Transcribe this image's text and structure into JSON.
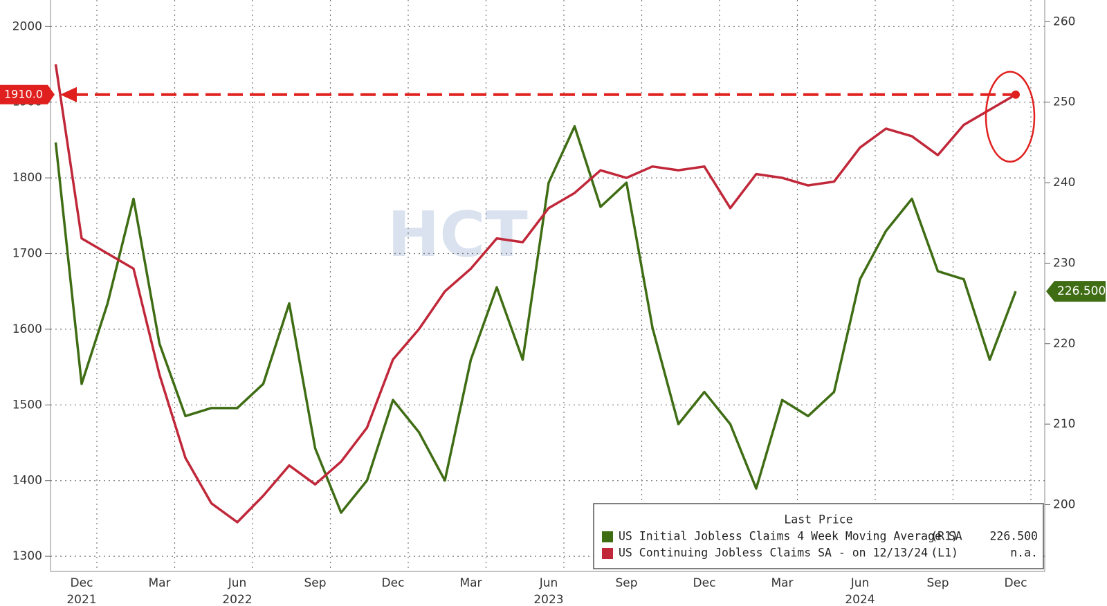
{
  "chart_data": {
    "type": "line",
    "watermark": "HCT",
    "x": [
      "2021-11",
      "2021-12",
      "2022-01",
      "2022-02",
      "2022-03",
      "2022-04",
      "2022-05",
      "2022-06",
      "2022-07",
      "2022-08",
      "2022-09",
      "2022-10",
      "2022-11",
      "2022-12",
      "2023-01",
      "2023-02",
      "2023-03",
      "2023-04",
      "2023-05",
      "2023-06",
      "2023-07",
      "2023-08",
      "2023-09",
      "2023-10",
      "2023-11",
      "2023-12",
      "2024-01",
      "2024-02",
      "2024-03",
      "2024-04",
      "2024-05",
      "2024-06",
      "2024-07",
      "2024-08",
      "2024-09",
      "2024-10",
      "2024-11",
      "2024-12"
    ],
    "xticks": [
      {
        "value": "2021-12",
        "label": "Dec"
      },
      {
        "value": "2022-03",
        "label": "Mar"
      },
      {
        "value": "2022-06",
        "label": "Jun"
      },
      {
        "value": "2022-09",
        "label": "Sep"
      },
      {
        "value": "2022-12",
        "label": "Dec"
      },
      {
        "value": "2023-03",
        "label": "Mar"
      },
      {
        "value": "2023-06",
        "label": "Jun"
      },
      {
        "value": "2023-09",
        "label": "Sep"
      },
      {
        "value": "2023-12",
        "label": "Dec"
      },
      {
        "value": "2024-03",
        "label": "Mar"
      },
      {
        "value": "2024-06",
        "label": "Jun"
      },
      {
        "value": "2024-09",
        "label": "Sep"
      },
      {
        "value": "2024-12",
        "label": "Dec"
      }
    ],
    "xyears": [
      {
        "value": "2021-12",
        "label": "2021"
      },
      {
        "value": "2022-06",
        "label": "2022"
      },
      {
        "value": "2023-06",
        "label": "2023"
      },
      {
        "value": "2024-06",
        "label": "2024"
      }
    ],
    "ylim": [
      1280,
      2035
    ],
    "yticks": [
      1300,
      1400,
      1500,
      1600,
      1700,
      1800,
      1900,
      2000
    ],
    "y2lim": [
      191.7,
      262.7
    ],
    "y2ticks": [
      200,
      210,
      220,
      230,
      240,
      250,
      260
    ],
    "grid": true,
    "legend_title": "Last Price",
    "annotation": {
      "value": 1910,
      "label": "1910.0",
      "color": "#e0201e"
    },
    "series": [
      {
        "name": "US Initial Jobless Claims 4 Week Moving Average SA",
        "axis_tag": "(R1)",
        "last_price": "226.500",
        "axis": "y2",
        "color": "#3f6d14",
        "values": [
          245,
          215,
          225,
          238,
          220,
          211,
          212,
          212,
          215,
          225,
          207,
          199,
          203,
          213,
          209,
          203,
          218,
          227,
          218,
          240,
          247,
          237,
          240,
          222,
          210,
          214,
          210,
          202,
          213,
          211,
          214,
          228,
          234,
          238,
          229,
          228,
          218,
          226.5
        ]
      },
      {
        "name": "US Continuing Jobless Claims SA -  on 12/13/24",
        "axis_tag": "(L1)",
        "last_price": "n.a.",
        "axis": "y",
        "color": "#c0283a",
        "values": [
          1950,
          1720,
          1700,
          1680,
          1540,
          1430,
          1370,
          1345,
          1380,
          1420,
          1395,
          1425,
          1470,
          1560,
          1600,
          1650,
          1680,
          1720,
          1715,
          1760,
          1780,
          1810,
          1800,
          1815,
          1810,
          1815,
          1760,
          1805,
          1800,
          1790,
          1795,
          1840,
          1865,
          1855,
          1830,
          1870,
          1890,
          1910
        ]
      }
    ]
  }
}
